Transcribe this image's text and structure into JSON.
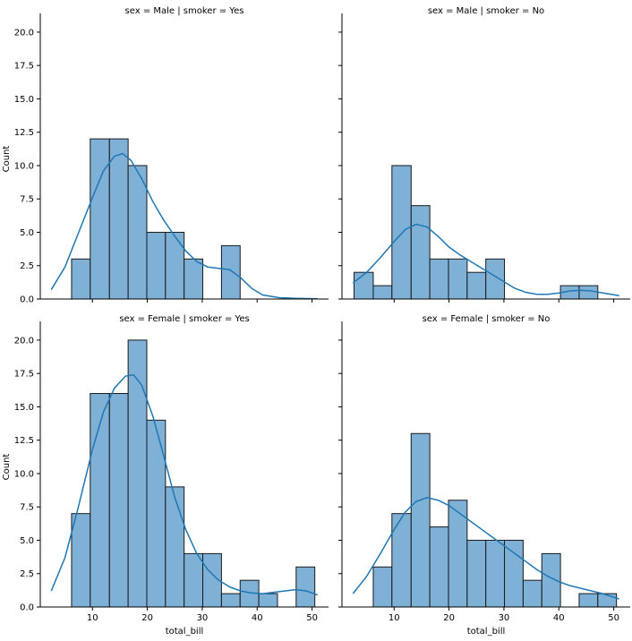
{
  "chart_data": {
    "type": "histogram",
    "layout": "facet-grid 2x2 (rows: sex, cols: smoker)",
    "x_label": "total_bill",
    "y_label": "Count",
    "x_ticks": [
      10,
      20,
      30,
      40,
      50
    ],
    "y_ticks": [
      0.0,
      2.5,
      5.0,
      7.5,
      10.0,
      12.5,
      15.0,
      17.5,
      20.0
    ],
    "y_tick_labels": [
      "0.0",
      "2.5",
      "5.0",
      "7.5",
      "10.0",
      "12.5",
      "15.0",
      "17.5",
      "20.0"
    ],
    "xlim": [
      0.5,
      53
    ],
    "ylim": [
      0,
      21
    ],
    "kde": true,
    "grid": false,
    "colors": {
      "bar_fill": "#7fb0d6",
      "bar_edge": "#1a1a1a",
      "kde_line": "#1f77b4",
      "axis": "#000000"
    },
    "facets": [
      {
        "title": "sex = Male | smoker = Yes",
        "row": 0,
        "col": 0,
        "bins": [
          {
            "x0": 6.2,
            "x1": 9.6,
            "count": 3
          },
          {
            "x0": 9.6,
            "x1": 13.1,
            "count": 12
          },
          {
            "x0": 13.1,
            "x1": 16.5,
            "count": 12
          },
          {
            "x0": 16.5,
            "x1": 19.9,
            "count": 10
          },
          {
            "x0": 19.9,
            "x1": 23.3,
            "count": 5
          },
          {
            "x0": 23.3,
            "x1": 26.7,
            "count": 5
          },
          {
            "x0": 26.7,
            "x1": 30.1,
            "count": 3
          },
          {
            "x0": 33.5,
            "x1": 36.9,
            "count": 4
          }
        ],
        "kde": [
          {
            "x": 2.5,
            "y": 0.7
          },
          {
            "x": 5,
            "y": 2.4
          },
          {
            "x": 7.5,
            "y": 5.0
          },
          {
            "x": 10,
            "y": 7.6
          },
          {
            "x": 12,
            "y": 9.6
          },
          {
            "x": 14,
            "y": 10.7
          },
          {
            "x": 15.5,
            "y": 10.9
          },
          {
            "x": 17,
            "y": 10.4
          },
          {
            "x": 19,
            "y": 9.0
          },
          {
            "x": 21,
            "y": 7.3
          },
          {
            "x": 23,
            "y": 5.9
          },
          {
            "x": 25,
            "y": 4.7
          },
          {
            "x": 27,
            "y": 3.6
          },
          {
            "x": 29,
            "y": 2.8
          },
          {
            "x": 31,
            "y": 2.4
          },
          {
            "x": 33,
            "y": 2.3
          },
          {
            "x": 35,
            "y": 2.2
          },
          {
            "x": 37,
            "y": 1.6
          },
          {
            "x": 39,
            "y": 0.8
          },
          {
            "x": 41,
            "y": 0.3
          },
          {
            "x": 44,
            "y": 0.1
          },
          {
            "x": 47,
            "y": 0.05
          },
          {
            "x": 51,
            "y": 0.02
          }
        ]
      },
      {
        "title": "sex = Male | smoker = No",
        "row": 0,
        "col": 1,
        "bins": [
          {
            "x0": 2.7,
            "x1": 6.2,
            "count": 2
          },
          {
            "x0": 6.2,
            "x1": 9.6,
            "count": 1
          },
          {
            "x0": 9.6,
            "x1": 13.1,
            "count": 10
          },
          {
            "x0": 13.1,
            "x1": 16.5,
            "count": 7
          },
          {
            "x0": 16.5,
            "x1": 19.9,
            "count": 3
          },
          {
            "x0": 19.9,
            "x1": 23.3,
            "count": 3
          },
          {
            "x0": 23.3,
            "x1": 26.7,
            "count": 2
          },
          {
            "x0": 26.7,
            "x1": 30.1,
            "count": 3
          },
          {
            "x0": 40.3,
            "x1": 43.7,
            "count": 1
          },
          {
            "x0": 43.7,
            "x1": 47.1,
            "count": 1
          }
        ],
        "kde": [
          {
            "x": 2.5,
            "y": 1.2
          },
          {
            "x": 5,
            "y": 2.0
          },
          {
            "x": 7.5,
            "y": 3.1
          },
          {
            "x": 10,
            "y": 4.3
          },
          {
            "x": 12,
            "y": 5.2
          },
          {
            "x": 14,
            "y": 5.6
          },
          {
            "x": 16,
            "y": 5.4
          },
          {
            "x": 18,
            "y": 4.7
          },
          {
            "x": 20,
            "y": 3.9
          },
          {
            "x": 22,
            "y": 3.3
          },
          {
            "x": 24,
            "y": 2.8
          },
          {
            "x": 26,
            "y": 2.3
          },
          {
            "x": 28,
            "y": 1.8
          },
          {
            "x": 30,
            "y": 1.3
          },
          {
            "x": 32,
            "y": 0.8
          },
          {
            "x": 34,
            "y": 0.5
          },
          {
            "x": 36,
            "y": 0.35
          },
          {
            "x": 38,
            "y": 0.35
          },
          {
            "x": 40,
            "y": 0.45
          },
          {
            "x": 42,
            "y": 0.6
          },
          {
            "x": 44,
            "y": 0.65
          },
          {
            "x": 46,
            "y": 0.6
          },
          {
            "x": 48,
            "y": 0.45
          },
          {
            "x": 51,
            "y": 0.25
          }
        ]
      },
      {
        "title": "sex = Female | smoker = Yes",
        "row": 1,
        "col": 0,
        "bins": [
          {
            "x0": 6.2,
            "x1": 9.6,
            "count": 7
          },
          {
            "x0": 9.6,
            "x1": 13.1,
            "count": 16
          },
          {
            "x0": 13.1,
            "x1": 16.5,
            "count": 16
          },
          {
            "x0": 16.5,
            "x1": 19.9,
            "count": 20
          },
          {
            "x0": 19.9,
            "x1": 23.3,
            "count": 14
          },
          {
            "x0": 23.3,
            "x1": 26.7,
            "count": 9
          },
          {
            "x0": 26.7,
            "x1": 30.1,
            "count": 4
          },
          {
            "x0": 30.1,
            "x1": 33.5,
            "count": 4
          },
          {
            "x0": 33.5,
            "x1": 36.9,
            "count": 1
          },
          {
            "x0": 36.9,
            "x1": 40.3,
            "count": 2
          },
          {
            "x0": 40.3,
            "x1": 43.7,
            "count": 1
          },
          {
            "x0": 47.1,
            "x1": 50.5,
            "count": 3
          }
        ],
        "kde": [
          {
            "x": 2.5,
            "y": 1.2
          },
          {
            "x": 5,
            "y": 3.7
          },
          {
            "x": 7.5,
            "y": 7.6
          },
          {
            "x": 10,
            "y": 11.8
          },
          {
            "x": 12,
            "y": 14.6
          },
          {
            "x": 14,
            "y": 16.4
          },
          {
            "x": 16,
            "y": 17.3
          },
          {
            "x": 17.5,
            "y": 17.4
          },
          {
            "x": 19,
            "y": 16.6
          },
          {
            "x": 21,
            "y": 14.3
          },
          {
            "x": 23,
            "y": 11.3
          },
          {
            "x": 25,
            "y": 8.2
          },
          {
            "x": 27,
            "y": 5.8
          },
          {
            "x": 29,
            "y": 4.0
          },
          {
            "x": 31,
            "y": 2.8
          },
          {
            "x": 33,
            "y": 2.0
          },
          {
            "x": 35,
            "y": 1.5
          },
          {
            "x": 37,
            "y": 1.2
          },
          {
            "x": 39,
            "y": 1.05
          },
          {
            "x": 41,
            "y": 1.0
          },
          {
            "x": 43,
            "y": 1.1
          },
          {
            "x": 45,
            "y": 1.2
          },
          {
            "x": 47,
            "y": 1.3
          },
          {
            "x": 49,
            "y": 1.2
          },
          {
            "x": 51,
            "y": 0.9
          }
        ]
      },
      {
        "title": "sex = Female | smoker = No",
        "row": 1,
        "col": 1,
        "bins": [
          {
            "x0": 6.2,
            "x1": 9.6,
            "count": 3
          },
          {
            "x0": 9.6,
            "x1": 13.1,
            "count": 7
          },
          {
            "x0": 13.1,
            "x1": 16.5,
            "count": 13
          },
          {
            "x0": 16.5,
            "x1": 19.9,
            "count": 6
          },
          {
            "x0": 19.9,
            "x1": 23.3,
            "count": 8
          },
          {
            "x0": 23.3,
            "x1": 26.7,
            "count": 5
          },
          {
            "x0": 26.7,
            "x1": 30.1,
            "count": 5
          },
          {
            "x0": 30.1,
            "x1": 33.5,
            "count": 5
          },
          {
            "x0": 33.5,
            "x1": 36.9,
            "count": 2
          },
          {
            "x0": 36.9,
            "x1": 40.3,
            "count": 4
          },
          {
            "x0": 43.7,
            "x1": 47.1,
            "count": 1
          },
          {
            "x0": 47.1,
            "x1": 50.5,
            "count": 1
          }
        ],
        "kde": [
          {
            "x": 2.5,
            "y": 1.0
          },
          {
            "x": 5,
            "y": 2.3
          },
          {
            "x": 7.5,
            "y": 4.0
          },
          {
            "x": 10,
            "y": 5.8
          },
          {
            "x": 12,
            "y": 7.1
          },
          {
            "x": 14,
            "y": 7.9
          },
          {
            "x": 16,
            "y": 8.2
          },
          {
            "x": 18,
            "y": 8.0
          },
          {
            "x": 20,
            "y": 7.6
          },
          {
            "x": 22,
            "y": 7.0
          },
          {
            "x": 24,
            "y": 6.4
          },
          {
            "x": 26,
            "y": 5.8
          },
          {
            "x": 28,
            "y": 5.2
          },
          {
            "x": 30,
            "y": 4.6
          },
          {
            "x": 32,
            "y": 4.0
          },
          {
            "x": 34,
            "y": 3.4
          },
          {
            "x": 36,
            "y": 2.8
          },
          {
            "x": 38,
            "y": 2.3
          },
          {
            "x": 40,
            "y": 1.9
          },
          {
            "x": 42,
            "y": 1.6
          },
          {
            "x": 44,
            "y": 1.4
          },
          {
            "x": 46,
            "y": 1.2
          },
          {
            "x": 48,
            "y": 1.0
          },
          {
            "x": 51,
            "y": 0.6
          }
        ]
      }
    ]
  }
}
